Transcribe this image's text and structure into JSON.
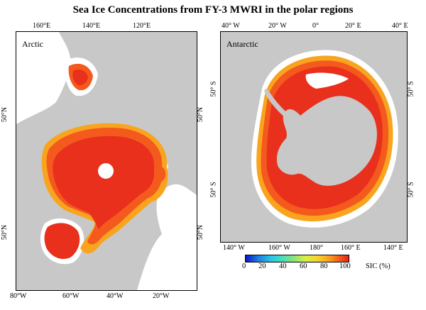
{
  "title": "Sea Ice Concentrations from FY-3 MWRI in the polar regions",
  "arctic": {
    "label": "Arctic",
    "top_ticks": [
      "160°E",
      "140°E",
      "120°E"
    ],
    "bottom_ticks": [
      "80°W",
      "60°W",
      "40°W",
      "20°W"
    ],
    "left_ticks": [
      "50°N",
      "50°N"
    ],
    "right_ticks": [
      "50°N",
      "50°N"
    ]
  },
  "antarctic": {
    "label": "Antarctic",
    "top_ticks": [
      "40° W",
      "20° W",
      "0°",
      "20° E",
      "40° E"
    ],
    "bottom_ticks": [
      "140° W",
      "160° W",
      "180°",
      "160° E",
      "140° E"
    ],
    "left_ticks": [
      "50° S",
      "50° S"
    ],
    "right_ticks": [
      "50° S",
      "50° S"
    ]
  },
  "colorbar": {
    "ticks": [
      "0",
      "20",
      "40",
      "60",
      "80",
      "100"
    ],
    "unit_label": "SIC (%)",
    "colors": [
      "#0a17c9",
      "#26c4e8",
      "#89e37a",
      "#f7d22d",
      "#fb9a1e",
      "#e4251b"
    ]
  },
  "colors": {
    "land": "#c8c8c8",
    "ocean": "#ffffff",
    "ice_core": "#e8301c",
    "ice_mid": "#f4591e",
    "ice_edge": "#f9a41f",
    "pole_hole": "#ffffff"
  }
}
